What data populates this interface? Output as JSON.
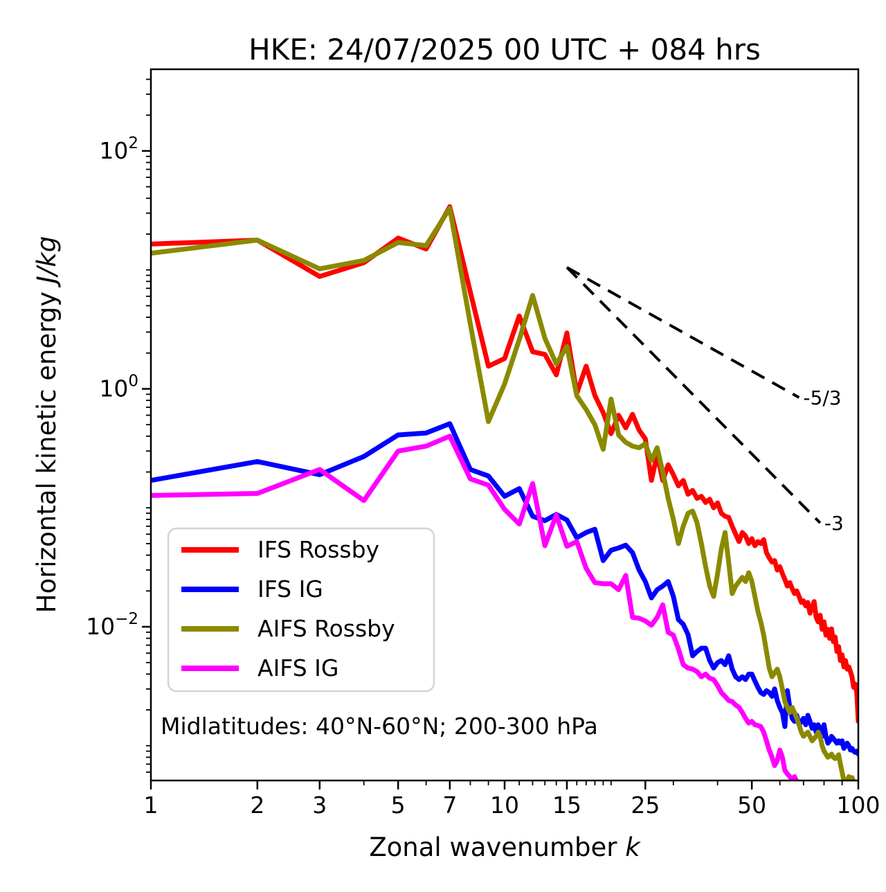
{
  "title": "HKE: 24/07/2025 00 UTC + 084 hrs",
  "annotation": "Midlatitudes: 40°N-60°N; 200-300 hPa",
  "axes": {
    "xlabel_prefix": "Zonal wavenumber ",
    "xlabel_italic": "k",
    "ylabel_prefix": "Horizontal kinetic energy ",
    "ylabel_italic": "J/kg",
    "xlim": [
      1,
      100
    ],
    "ylim": [
      0.00051,
      486
    ],
    "x_scale": "log",
    "y_scale": "log",
    "grid": false,
    "x_major_ticks": [
      1,
      2,
      3,
      5,
      7,
      10,
      15,
      25,
      50,
      100
    ],
    "x_major_labels": [
      "1",
      "2",
      "3",
      "5",
      "7",
      "10",
      "15",
      "25",
      "50",
      "100"
    ],
    "x_minor_ticks": [
      4,
      6,
      8,
      9,
      11,
      12,
      13,
      14,
      16,
      17,
      18,
      19,
      20,
      30,
      40,
      60,
      70,
      80,
      90
    ],
    "y_major_ticks": [
      {
        "value": 100,
        "mantissa": "10",
        "exponent": "2"
      },
      {
        "value": 1,
        "mantissa": "10",
        "exponent": "0"
      },
      {
        "value": 0.01,
        "mantissa": "10",
        "exponent": "−2"
      }
    ]
  },
  "reference_lines": [
    {
      "label": "-5/3",
      "slope": -1.6667,
      "start_k": 15,
      "start_v": 10.5,
      "end_k": 68
    },
    {
      "label": "-3",
      "slope": -3.0,
      "start_k": 15,
      "start_v": 10.5,
      "end_k": 78
    }
  ],
  "legend": [
    {
      "label": "IFS Rossby",
      "color": "#ff0000"
    },
    {
      "label": "IFS IG",
      "color": "#0000ff"
    },
    {
      "label": "AIFS Rossby",
      "color": "#8a8a00"
    },
    {
      "label": "AIFS IG",
      "color": "#ff00ff"
    }
  ],
  "chart_data": {
    "type": "line",
    "title": "HKE: 24/07/2025 00 UTC + 084 hrs",
    "xlabel": "Zonal wavenumber k",
    "ylabel": "Horizontal kinetic energy J/kg",
    "xlim": [
      1,
      100
    ],
    "ylim": [
      0.00051,
      486
    ],
    "legend_position": "center-left",
    "x": [
      1,
      2,
      3,
      4,
      5,
      6,
      7,
      8,
      9,
      10,
      11,
      12,
      13,
      14,
      15,
      16,
      17,
      18,
      19,
      20,
      21,
      22,
      23,
      24,
      25,
      26,
      27,
      28,
      29,
      30,
      31,
      32,
      33,
      34,
      35,
      36,
      37,
      38,
      39,
      40,
      41,
      42,
      43,
      44,
      45,
      46,
      47,
      48,
      49,
      50,
      51,
      52,
      53,
      54,
      55,
      56,
      57,
      58,
      59,
      60,
      61,
      62,
      63,
      64,
      65,
      66,
      67,
      68,
      69,
      70,
      71,
      72,
      73,
      74,
      75,
      76,
      77,
      78,
      79,
      80,
      81,
      82,
      83,
      84,
      85,
      86,
      87,
      88,
      89,
      90,
      91,
      92,
      93,
      94,
      95,
      96,
      97,
      98,
      99,
      100
    ],
    "series": [
      {
        "name": "IFS Rossby",
        "color": "#ff0000",
        "values": [
          16.5,
          17.8,
          8.8,
          11.5,
          18.5,
          15.0,
          34.0,
          6.5,
          1.55,
          1.8,
          4.1,
          2.05,
          1.95,
          1.31,
          2.95,
          0.92,
          1.55,
          0.88,
          0.63,
          0.42,
          0.6,
          0.47,
          0.61,
          0.45,
          0.38,
          0.17,
          0.28,
          0.17,
          0.23,
          0.19,
          0.153,
          0.17,
          0.13,
          0.14,
          0.12,
          0.125,
          0.111,
          0.118,
          0.1,
          0.11,
          0.09,
          0.085,
          0.083,
          0.07,
          0.06,
          0.052,
          0.062,
          0.058,
          0.05,
          0.055,
          0.048,
          0.052,
          0.05,
          0.054,
          0.042,
          0.038,
          0.035,
          0.036,
          0.03,
          0.032,
          0.028,
          0.025,
          0.022,
          0.0235,
          0.021,
          0.019,
          0.02,
          0.018,
          0.016,
          0.0165,
          0.015,
          0.016,
          0.013,
          0.0145,
          0.0163,
          0.012,
          0.011,
          0.0125,
          0.0095,
          0.011,
          0.0085,
          0.0095,
          0.008,
          0.0096,
          0.0075,
          0.0082,
          0.0062,
          0.0068,
          0.0052,
          0.0058,
          0.0046,
          0.0052,
          0.0044,
          0.0046,
          0.0042,
          0.0038,
          0.0031,
          0.0033,
          0.0028,
          0.0016
        ]
      },
      {
        "name": "IFS IG",
        "color": "#0000ff",
        "values": [
          0.17,
          0.245,
          0.19,
          0.27,
          0.41,
          0.425,
          0.51,
          0.21,
          0.185,
          0.125,
          0.145,
          0.085,
          0.078,
          0.088,
          0.079,
          0.056,
          0.062,
          0.066,
          0.036,
          0.044,
          0.046,
          0.0485,
          0.042,
          0.03,
          0.024,
          0.0175,
          0.0205,
          0.022,
          0.024,
          0.018,
          0.0115,
          0.0105,
          0.0086,
          0.0057,
          0.0062,
          0.0066,
          0.0066,
          0.0052,
          0.0045,
          0.005,
          0.0052,
          0.0048,
          0.0057,
          0.0044,
          0.0038,
          0.0036,
          0.0038,
          0.0036,
          0.004,
          0.004,
          0.0035,
          0.0031,
          0.0028,
          0.0027,
          0.0029,
          0.0028,
          0.0026,
          0.003,
          0.0024,
          0.0021,
          0.0019,
          0.00145,
          0.0029,
          0.0021,
          0.0017,
          0.0016,
          0.0018,
          0.0015,
          0.0016,
          0.0017,
          0.0015,
          0.0018,
          0.0016,
          0.0014,
          0.0015,
          0.0013,
          0.0015,
          0.0014,
          0.0012,
          0.0015,
          0.0012,
          0.00105,
          0.0011,
          0.0012,
          0.00115,
          0.0011,
          0.00105,
          0.0011,
          0.00105,
          0.0011,
          0.00095,
          0.001,
          0.00105,
          0.001,
          0.00092,
          0.00095,
          0.0009,
          0.00088,
          0.0009,
          0.00085
        ]
      },
      {
        "name": "AIFS Rossby",
        "color": "#8a8a00",
        "values": [
          13.8,
          17.8,
          10.2,
          12.0,
          17.0,
          16.0,
          33.0,
          3.5,
          0.53,
          1.1,
          2.6,
          6.1,
          2.66,
          1.62,
          2.27,
          0.875,
          0.67,
          0.5,
          0.31,
          0.82,
          0.41,
          0.355,
          0.33,
          0.32,
          0.345,
          0.25,
          0.32,
          0.2,
          0.12,
          0.08,
          0.05,
          0.07,
          0.09,
          0.094,
          0.075,
          0.05,
          0.032,
          0.022,
          0.018,
          0.028,
          0.045,
          0.062,
          0.035,
          0.019,
          0.022,
          0.024,
          0.026,
          0.024,
          0.0285,
          0.024,
          0.018,
          0.0135,
          0.011,
          0.0085,
          0.0062,
          0.0045,
          0.0038,
          0.0041,
          0.0044,
          0.0038,
          0.003,
          0.00235,
          0.0021,
          0.0019,
          0.0021,
          0.0019,
          0.0017,
          0.0015,
          0.0013,
          0.0012,
          0.00125,
          0.0013,
          0.0012,
          0.0011,
          0.00115,
          0.0012,
          0.0013,
          0.0012,
          0.001,
          0.0009,
          0.00085,
          0.0008,
          0.00082,
          0.00085,
          0.0008,
          0.00078,
          0.0008,
          0.00084,
          0.0007,
          0.0006,
          0.00051,
          0.00048,
          0.0005,
          0.00055,
          0.00052,
          0.00054,
          0.0005,
          0.00046,
          0.00048,
          0.00042
        ]
      },
      {
        "name": "AIFS IG",
        "color": "#ff00ff",
        "values": [
          0.127,
          0.132,
          0.21,
          0.115,
          0.3,
          0.33,
          0.4,
          0.175,
          0.155,
          0.097,
          0.073,
          0.16,
          0.048,
          0.087,
          0.0475,
          0.052,
          0.031,
          0.0235,
          0.023,
          0.023,
          0.0205,
          0.027,
          0.012,
          0.0118,
          0.0112,
          0.0103,
          0.012,
          0.0153,
          0.009,
          0.0085,
          0.0065,
          0.0048,
          0.0045,
          0.0044,
          0.0042,
          0.0038,
          0.004,
          0.0037,
          0.0036,
          0.0032,
          0.0028,
          0.0026,
          0.0024,
          0.00235,
          0.0022,
          0.0021,
          0.0019,
          0.0017,
          0.00155,
          0.0016,
          0.0015,
          0.00148,
          0.00145,
          0.0013,
          0.0011,
          0.00092,
          0.0008,
          0.00068,
          0.00075,
          0.00092,
          0.0008,
          0.00062,
          0.00058,
          0.00055,
          0.00052,
          0.00055,
          0.0005,
          0.00046,
          0.0004,
          0.00036,
          null,
          null,
          null,
          null,
          null,
          null,
          null,
          null,
          null,
          null,
          null,
          null,
          null,
          null,
          null,
          null,
          null,
          null,
          null,
          null,
          null,
          null,
          null,
          null,
          null,
          null,
          null,
          null,
          null,
          null
        ]
      }
    ]
  }
}
